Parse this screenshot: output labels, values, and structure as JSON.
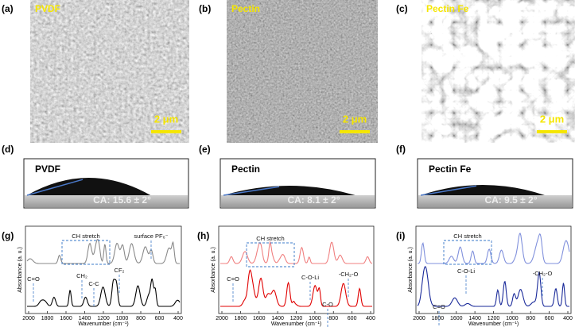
{
  "sem_panels": [
    {
      "label": "(a)",
      "title": "PVDF",
      "scale": "2 μm"
    },
    {
      "label": "(b)",
      "title": "Pectin",
      "scale": "2 μm"
    },
    {
      "label": "(c)",
      "title": "Pectin Fe",
      "scale": "2 μm"
    }
  ],
  "contact_panels": [
    {
      "label": "(d)",
      "title": "PVDF",
      "angle": "CA: 15.6 ± 2°"
    },
    {
      "label": "(e)",
      "title": "Pectin",
      "angle": "CA: 8.1 ± 2°"
    },
    {
      "label": "(f)",
      "title": "Pectin Fe",
      "angle": "CA: 9.5 ± 2°"
    }
  ],
  "spectra_panels": [
    {
      "label": "(g)",
      "y_label": "Absorbance (a. u.)",
      "x_label": "Wavenumber (cm⁻¹)",
      "xticks": [
        "2000",
        "1800",
        "1600",
        "1400",
        "1200",
        "1000",
        "800",
        "600",
        "400"
      ],
      "annotations": [
        "CH stretch",
        "surface PF₆⁻",
        "C=O",
        "CH₂",
        "C-C",
        "CF₂"
      ]
    },
    {
      "label": "(h)",
      "y_label": "Absorbance (a. u.)",
      "x_label": "Wavenumber (cm⁻¹)",
      "xticks": [
        "2000",
        "1800",
        "1600",
        "1400",
        "1200",
        "1000",
        "800",
        "600",
        "400"
      ],
      "annotations": [
        "CH stretch",
        "C-O-Li",
        "-CH₂-O",
        "C=O",
        "C-O"
      ]
    },
    {
      "label": "(i)",
      "y_label": "Absorbance (a. u.)",
      "x_label": "Wavenumber (cm⁻¹)",
      "xticks": [
        "2000",
        "1800",
        "1600",
        "1400",
        "1200",
        "1000",
        "800",
        "600",
        "400"
      ],
      "annotations": [
        "CH stretch",
        "C-O-Li",
        "-CH₂-O",
        "C=O"
      ]
    }
  ]
}
